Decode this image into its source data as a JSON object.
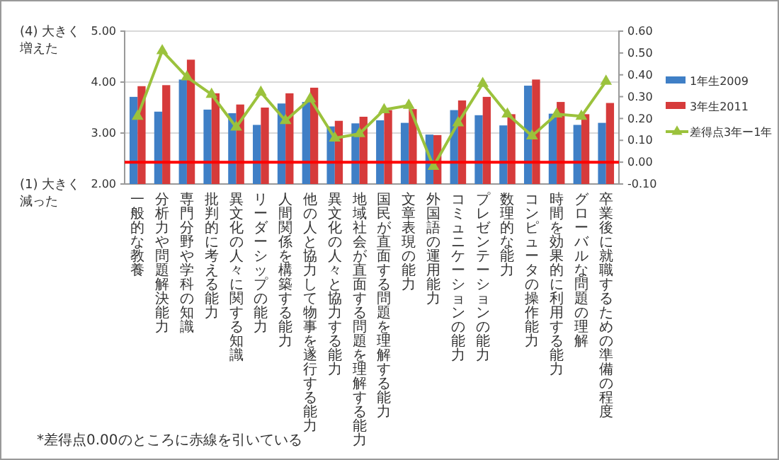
{
  "chart_data": {
    "type": "bar",
    "categories": [
      "一般的な教養",
      "分析力や問題解決能力",
      "専門分野や学科の知識",
      "批判的に考える能力",
      "異文化の人々に関する知識",
      "リーダーシップの能力",
      "人間関係を構築する能力",
      "他の人と協力して物事を遂行する能力",
      "異文化の人々と協力する能力",
      "地域社会が直面する問題を理解する能力",
      "国民が直面する問題を理解する能力",
      "文章表現の能力",
      "外国語の運用能力",
      "コミュニケーションの能力",
      "プレゼンテーションの能力",
      "数理的な能力",
      "コンピュータの操作能力",
      "時間を効果的に利用する能力",
      "グローバルな問題の理解",
      "卒業後に就職するための準備の程度"
    ],
    "series": [
      {
        "name": "1年生2009",
        "color": "#3f7fc6",
        "values": [
          3.71,
          3.42,
          4.05,
          3.46,
          3.39,
          3.16,
          3.58,
          3.61,
          3.13,
          3.19,
          3.25,
          3.2,
          2.97,
          3.45,
          3.35,
          3.15,
          3.93,
          3.38,
          3.16,
          3.2
        ]
      },
      {
        "name": "3年生2011",
        "color": "#d63b3b",
        "values": [
          3.92,
          3.94,
          4.44,
          3.78,
          3.56,
          3.5,
          3.78,
          3.89,
          3.24,
          3.32,
          3.45,
          3.47,
          2.96,
          3.64,
          3.71,
          3.37,
          4.05,
          3.61,
          3.37,
          3.59
        ]
      },
      {
        "name": "差得点3年ー1年",
        "type": "line",
        "axis": "y2",
        "color": "#9bc23c",
        "values": [
          0.21,
          0.51,
          0.39,
          0.31,
          0.16,
          0.32,
          0.19,
          0.29,
          0.11,
          0.13,
          0.24,
          0.26,
          -0.02,
          0.18,
          0.36,
          0.22,
          0.12,
          0.22,
          0.21,
          0.37
        ]
      }
    ],
    "ylim": [
      2,
      5
    ],
    "yticks": [
      {
        "value": 2,
        "label": "2.00"
      },
      {
        "value": 3,
        "label": "3.00"
      },
      {
        "value": 4,
        "label": "4.00"
      },
      {
        "value": 5,
        "label": "5.00"
      }
    ],
    "y2lim": [
      -0.1,
      0.6
    ],
    "y2ticks": [
      {
        "value": -0.1,
        "label": "-0.10"
      },
      {
        "value": 0,
        "label": "0.00"
      },
      {
        "value": 0.1,
        "label": "0.10"
      },
      {
        "value": 0.2,
        "label": "0.20"
      },
      {
        "value": 0.3,
        "label": "0.30"
      },
      {
        "value": 0.4,
        "label": "0.40"
      },
      {
        "value": 0.5,
        "label": "0.50"
      },
      {
        "value": 0.6,
        "label": "0.60"
      }
    ],
    "ref_lines": [
      {
        "axis": "y2",
        "value": 0,
        "color": "#ff0000"
      }
    ],
    "annotations": [
      "(4) 大きく増えた",
      "(1) 大きく減った",
      "*差得点0.00のところに赤線を引いている"
    ],
    "grid": "y",
    "legend": "right",
    "marker": "triangle",
    "line_style": "solid"
  }
}
